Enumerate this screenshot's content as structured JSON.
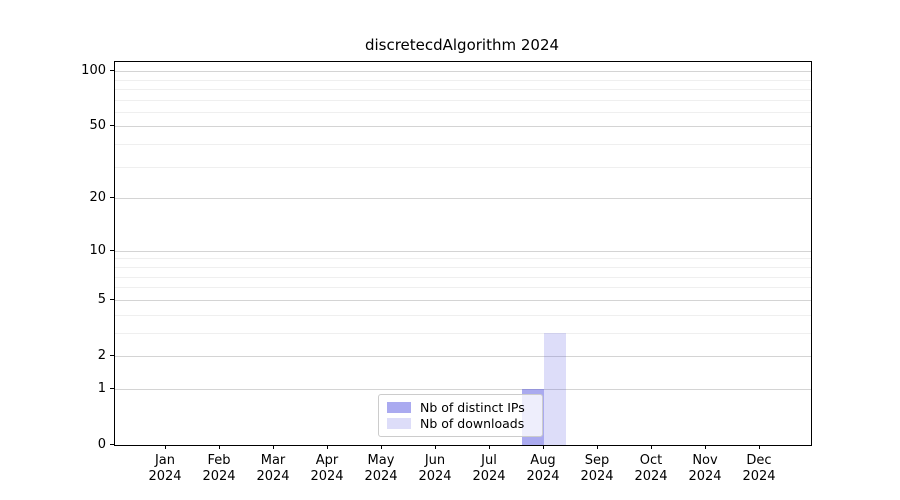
{
  "chart_data": {
    "type": "bar",
    "title": "discretecdAlgorithm 2024",
    "x_tick_months": [
      "Jan",
      "Feb",
      "Mar",
      "Apr",
      "May",
      "Jun",
      "Jul",
      "Aug",
      "Sep",
      "Oct",
      "Nov",
      "Dec"
    ],
    "x_tick_year": "2024",
    "series": [
      {
        "name": "Nb of distinct IPs",
        "color": "rgba(85, 85, 224, 0.5)",
        "swatch_color": "#aaaaf0",
        "values": [
          0,
          0,
          0,
          0,
          0,
          0,
          0,
          1,
          0,
          0,
          0,
          0
        ]
      },
      {
        "name": "Nb of downloads",
        "color": "rgba(85, 85, 224, 0.2)",
        "swatch_color": "#ddddf9",
        "values": [
          0,
          0,
          0,
          0,
          0,
          0,
          0,
          3,
          0,
          0,
          0,
          0
        ]
      }
    ],
    "yscale": "log1p",
    "ylim": [
      0,
      112
    ],
    "y_major_ticks": [
      0,
      1,
      2,
      5,
      10,
      20,
      50,
      100
    ],
    "y_minor_ticks": [
      3,
      4,
      6,
      7,
      8,
      9,
      30,
      40,
      60,
      70,
      80,
      90
    ],
    "grid": true,
    "legend_position": "lower center"
  }
}
